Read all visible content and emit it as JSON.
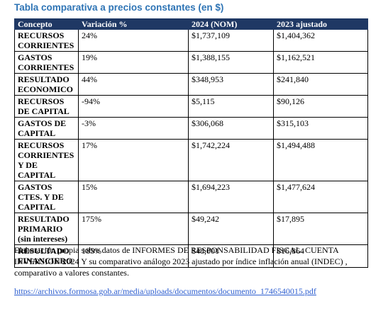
{
  "title": "Tabla comparativa a precios constantes (en $)",
  "table": {
    "header": [
      "Concepto",
      "Variación %",
      "2024 (NOM)",
      "2023 ajustado"
    ],
    "rows": [
      [
        "RECURSOS CORRIENTES",
        "24%",
        "$1,737,109",
        "$1,404,362"
      ],
      [
        "GASTOS CORRIENTES",
        "19%",
        "$1,388,155",
        "$1,162,521"
      ],
      [
        "RESULTADO ECONOMICO",
        "44%",
        "$348,953",
        "$241,840"
      ],
      [
        "RECURSOS DE CAPITAL",
        "-94%",
        "$5,115",
        "$90,126"
      ],
      [
        "GASTOS DE CAPITAL",
        "-3%",
        "$306,068",
        "$315,103"
      ],
      [
        "RECURSOS CORRIENTES Y DE CAPITAL",
        "17%",
        "$1,742,224",
        "$1,494,488"
      ],
      [
        "GASTOS CTES. Y DE CAPITAL",
        "15%",
        "$1,694,223",
        "$1,477,624"
      ],
      [
        "RESULTADO PRIMARIO (sin intereses)",
        "175%",
        "$49,242",
        "$17,895"
      ],
      [
        "RESULTADO FINANCIERO",
        "185%",
        "$48,001",
        "$16,864"
      ]
    ]
  },
  "footnote": "Elaboración propia sobre datos de INFORMES DE RESPONSABILIDAD FISCAL. CUENTA INVERSION 2024 Y su comparativo análogo 2023 ajustado por índice inflación anual (INDEC) , comparativo a valores constantes.",
  "link": "https://archivos.formosa.gob.ar/media/uploads/documentos/documento_1746540015.pdf"
}
